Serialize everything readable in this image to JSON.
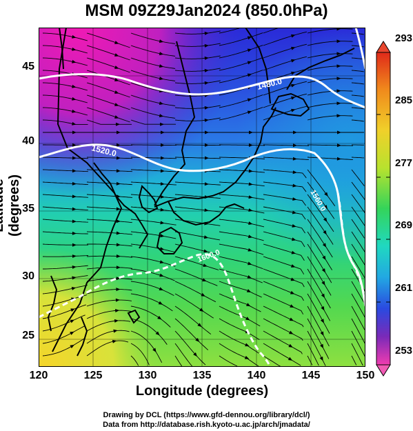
{
  "title": "MSM 09Z29Jan2024 (850.0hPa)",
  "xlabel": "Longitude (degrees)",
  "ylabel": "Latitude  (degrees)",
  "xticks": [
    "120",
    "125",
    "130",
    "135",
    "140",
    "145",
    "150"
  ],
  "yticks": [
    "45",
    "40",
    "35",
    "30",
    "25"
  ],
  "colorbar": {
    "ticks": [
      "293",
      "285",
      "277",
      "269",
      "261",
      "253"
    ],
    "colors": [
      "#e8462e",
      "#f07a1e",
      "#f2c52a",
      "#c8e62e",
      "#4ed64a",
      "#22d9a8",
      "#1fbde0",
      "#2b73e6",
      "#2d3cc8",
      "#7a2ab8",
      "#d21ea0",
      "#f05ab4"
    ]
  },
  "map": {
    "contour_labels": [
      "1480.0",
      "1520.0",
      "1560.0",
      "1600.0"
    ],
    "colors": {
      "warm_south": "#f2dc28",
      "green_mid": "#3ad46a",
      "cyan": "#20c8c8",
      "blue": "#2a60e0",
      "deep_blue": "#2a2ad8",
      "magenta_north": "#e020b8"
    }
  },
  "footer": {
    "line1": "Drawing by DCL (https://www.gfd-dennou.org/library/dcl/)",
    "line2": "Data from http://database.rish.kyoto-u.ac.jp/arch/jmadata/"
  }
}
